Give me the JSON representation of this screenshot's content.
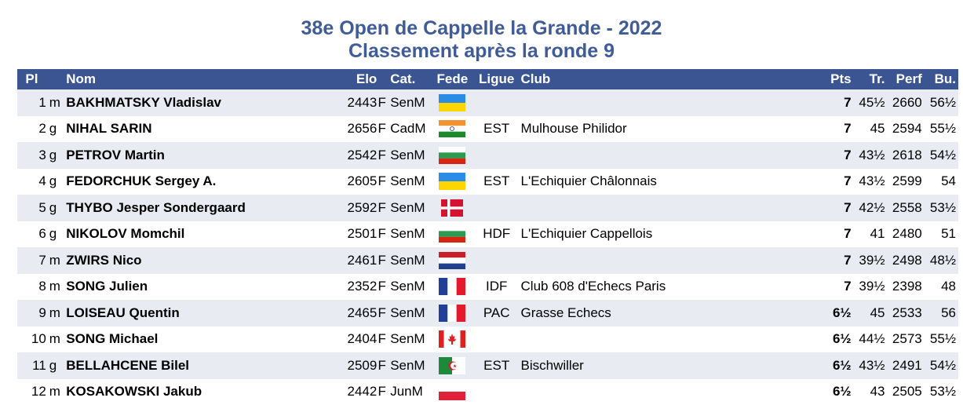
{
  "title": {
    "line1": "38e Open de Cappelle la Grande - 2022",
    "line2": "Classement après la ronde 9"
  },
  "columns": {
    "pl": "Pl",
    "nom": "Nom",
    "elo": "Elo",
    "cat": "Cat.",
    "fede": "Fede",
    "ligue": "Ligue",
    "club": "Club",
    "pts": "Pts",
    "tr": "Tr.",
    "perf": "Perf",
    "bu": "Bu."
  },
  "colors": {
    "header_bg": "#3a5591",
    "title": "#3f5c99",
    "row_alt": "#e9ebf3"
  },
  "rows": [
    {
      "pl": "1",
      "title": "m",
      "name": "BAKHMATSKY Vladislav",
      "elo": "2443",
      "f": "F",
      "cat": "SenM",
      "fede": "ukraine-flag",
      "ligue": "",
      "club": "",
      "pts": "7",
      "tr": "45½",
      "perf": "2660",
      "bu": "56½"
    },
    {
      "pl": "2",
      "title": "g",
      "name": "NIHAL SARIN",
      "elo": "2656",
      "f": "F",
      "cat": "CadM",
      "fede": "india-flag",
      "ligue": "EST",
      "club": "Mulhouse Philidor",
      "pts": "7",
      "tr": "45",
      "perf": "2594",
      "bu": "55½"
    },
    {
      "pl": "3",
      "title": "g",
      "name": "PETROV Martin",
      "elo": "2542",
      "f": "F",
      "cat": "SenM",
      "fede": "bulgaria-flag",
      "ligue": "",
      "club": "",
      "pts": "7",
      "tr": "43½",
      "perf": "2618",
      "bu": "54½"
    },
    {
      "pl": "4",
      "title": "g",
      "name": "FEDORCHUK Sergey A.",
      "elo": "2605",
      "f": "F",
      "cat": "SenM",
      "fede": "ukraine-flag",
      "ligue": "EST",
      "club": "L'Echiquier Châlonnais",
      "pts": "7",
      "tr": "43½",
      "perf": "2599",
      "bu": "54"
    },
    {
      "pl": "5",
      "title": "g",
      "name": "THYBO Jesper Sondergaard",
      "elo": "2592",
      "f": "F",
      "cat": "SenM",
      "fede": "denmark-flag",
      "ligue": "",
      "club": "",
      "pts": "7",
      "tr": "42½",
      "perf": "2558",
      "bu": "53½"
    },
    {
      "pl": "6",
      "title": "g",
      "name": "NIKOLOV Momchil",
      "elo": "2501",
      "f": "F",
      "cat": "SenM",
      "fede": "bulgaria-flag",
      "ligue": "HDF",
      "club": "L'Echiquier Cappellois",
      "pts": "7",
      "tr": "41",
      "perf": "2480",
      "bu": "51"
    },
    {
      "pl": "7",
      "title": "m",
      "name": "ZWIRS Nico",
      "elo": "2461",
      "f": "F",
      "cat": "SenM",
      "fede": "netherlands-flag",
      "ligue": "",
      "club": "",
      "pts": "7",
      "tr": "39½",
      "perf": "2498",
      "bu": "48½"
    },
    {
      "pl": "8",
      "title": "m",
      "name": "SONG Julien",
      "elo": "2352",
      "f": "F",
      "cat": "SenM",
      "fede": "france-flag",
      "ligue": "IDF",
      "club": "Club 608 d'Echecs Paris",
      "pts": "7",
      "tr": "39½",
      "perf": "2398",
      "bu": "48"
    },
    {
      "pl": "9",
      "title": "m",
      "name": "LOISEAU Quentin",
      "elo": "2465",
      "f": "F",
      "cat": "SenM",
      "fede": "france-flag",
      "ligue": "PAC",
      "club": "Grasse Echecs",
      "pts": "6½",
      "tr": "45",
      "perf": "2533",
      "bu": "56"
    },
    {
      "pl": "10",
      "title": "m",
      "name": "SONG Michael",
      "elo": "2404",
      "f": "F",
      "cat": "SenM",
      "fede": "canada-flag",
      "ligue": "",
      "club": "",
      "pts": "6½",
      "tr": "44½",
      "perf": "2573",
      "bu": "55½"
    },
    {
      "pl": "11",
      "title": "g",
      "name": "BELLAHCENE Bilel",
      "elo": "2509",
      "f": "F",
      "cat": "SenM",
      "fede": "algeria-flag",
      "ligue": "EST",
      "club": "Bischwiller",
      "pts": "6½",
      "tr": "43½",
      "perf": "2491",
      "bu": "54½"
    },
    {
      "pl": "12",
      "title": "m",
      "name": "KOSAKOWSKI Jakub",
      "elo": "2442",
      "f": "F",
      "cat": "JunM",
      "fede": "poland-flag",
      "ligue": "",
      "club": "",
      "pts": "6½",
      "tr": "43",
      "perf": "2505",
      "bu": "53½"
    }
  ]
}
